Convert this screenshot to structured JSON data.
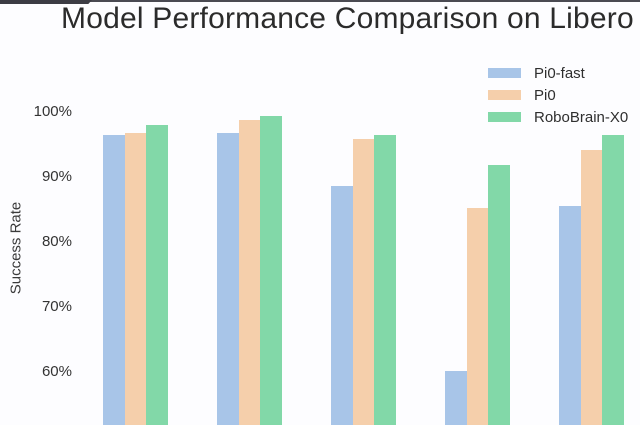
{
  "title": "Model Performance Comparison on Libero Tasks",
  "ylabel": "Success Rate",
  "chart_data": {
    "type": "bar",
    "title": "Model Performance Comparison on Libero Tasks",
    "xlabel": "",
    "ylabel": "Success Rate",
    "categories": [
      "",
      "",
      "",
      "",
      ""
    ],
    "categories_note": "x-axis category labels are cropped out of the visible screenshot; bars are cut off at the bottom edge",
    "series": [
      {
        "name": "Pi0-fast",
        "color": "#a8c5e8",
        "values": [
          96.4,
          96.8,
          88.6,
          60.2,
          85.5
        ]
      },
      {
        "name": "Pi0",
        "color": "#f5cfab",
        "values": [
          96.8,
          98.8,
          95.8,
          85.2,
          94.2
        ]
      },
      {
        "name": "RoboBrain-X0",
        "color": "#82d8a8",
        "values": [
          98.0,
          99.4,
          96.4,
          91.8,
          96.4
        ]
      }
    ],
    "yticks": [
      "100%",
      "90%",
      "80%",
      "70%",
      "60%"
    ],
    "ytick_values": [
      100,
      90,
      80,
      70,
      60
    ],
    "ylim_visible": [
      51.8,
      105
    ],
    "grid": false,
    "legend_position": "upper right"
  }
}
